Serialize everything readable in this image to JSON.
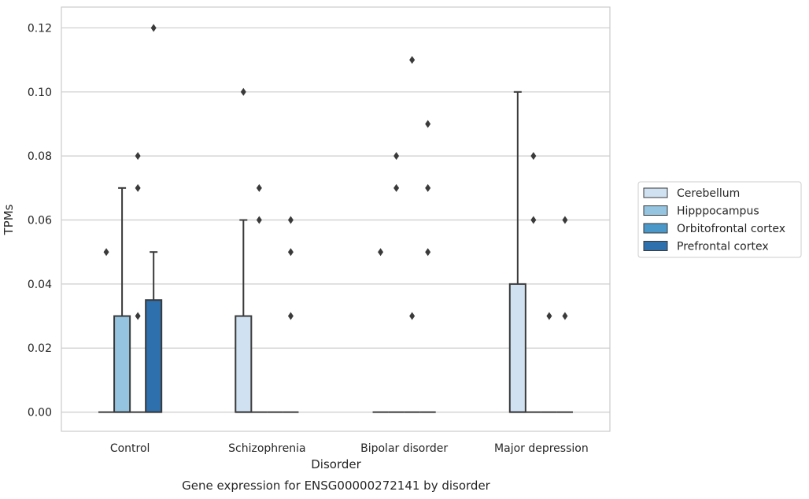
{
  "chart_data": {
    "type": "box",
    "title": "Gene expression for ENSG00000272141 by disorder",
    "xlabel": "Disorder",
    "ylabel": "TPMs",
    "ylim": [
      -0.006,
      0.1265
    ],
    "yticks": [
      0.0,
      0.02,
      0.04,
      0.06,
      0.08,
      0.1,
      0.12
    ],
    "ytick_labels": [
      "0.00",
      "0.02",
      "0.04",
      "0.06",
      "0.08",
      "0.10",
      "0.12"
    ],
    "grid": true,
    "legend_position": "right",
    "categories": [
      "Control",
      "Schizophrenia",
      "Bipolar disorder",
      "Major depression"
    ],
    "series": [
      {
        "name": "Cerebellum",
        "color": "#d0e1f2",
        "boxes": [
          {
            "q1": 0,
            "median": 0,
            "q3": 0,
            "whislo": 0,
            "whishi": 0,
            "fliers": [
              0.05
            ]
          },
          {
            "q1": 0,
            "median": 0,
            "q3": 0.03,
            "whislo": 0,
            "whishi": 0.06,
            "fliers": [
              0.1
            ]
          },
          {
            "q1": 0,
            "median": 0,
            "q3": 0,
            "whislo": 0,
            "whishi": 0,
            "fliers": [
              0.05
            ]
          },
          {
            "q1": 0,
            "median": 0,
            "q3": 0.04,
            "whislo": 0,
            "whishi": 0.1,
            "fliers": []
          }
        ]
      },
      {
        "name": "Hipppocampus",
        "color": "#94c4df",
        "boxes": [
          {
            "q1": 0,
            "median": 0,
            "q3": 0.03,
            "whislo": 0,
            "whishi": 0.07,
            "fliers": []
          },
          {
            "q1": 0,
            "median": 0,
            "q3": 0,
            "whislo": 0,
            "whishi": 0,
            "fliers": [
              0.06,
              0.07
            ]
          },
          {
            "q1": 0,
            "median": 0,
            "q3": 0,
            "whislo": 0,
            "whishi": 0,
            "fliers": [
              0.07,
              0.08
            ]
          },
          {
            "q1": 0,
            "median": 0,
            "q3": 0,
            "whislo": 0,
            "whishi": 0,
            "fliers": [
              0.06,
              0.08
            ]
          }
        ]
      },
      {
        "name": "Orbitofrontal cortex",
        "color": "#4a98c9",
        "boxes": [
          {
            "q1": 0,
            "median": 0,
            "q3": 0,
            "whislo": 0,
            "whishi": 0,
            "fliers": [
              0.03,
              0.07,
              0.08
            ]
          },
          {
            "q1": 0,
            "median": 0,
            "q3": 0,
            "whislo": 0,
            "whishi": 0,
            "fliers": []
          },
          {
            "q1": 0,
            "median": 0,
            "q3": 0,
            "whislo": 0,
            "whishi": 0,
            "fliers": [
              0.03,
              0.11
            ]
          },
          {
            "q1": 0,
            "median": 0,
            "q3": 0,
            "whislo": 0,
            "whishi": 0,
            "fliers": [
              0.03
            ]
          }
        ]
      },
      {
        "name": "Prefrontal cortex",
        "color": "#2e6fae",
        "boxes": [
          {
            "q1": 0,
            "median": 0,
            "q3": 0.035,
            "whislo": 0,
            "whishi": 0.05,
            "fliers": [
              0.12
            ]
          },
          {
            "q1": 0,
            "median": 0,
            "q3": 0,
            "whislo": 0,
            "whishi": 0,
            "fliers": [
              0.03,
              0.05,
              0.06
            ]
          },
          {
            "q1": 0,
            "median": 0,
            "q3": 0,
            "whislo": 0,
            "whishi": 0,
            "fliers": [
              0.05,
              0.07,
              0.09
            ]
          },
          {
            "q1": 0,
            "median": 0,
            "q3": 0,
            "whislo": 0,
            "whishi": 0,
            "fliers": [
              0.03,
              0.06
            ]
          }
        ]
      }
    ]
  }
}
